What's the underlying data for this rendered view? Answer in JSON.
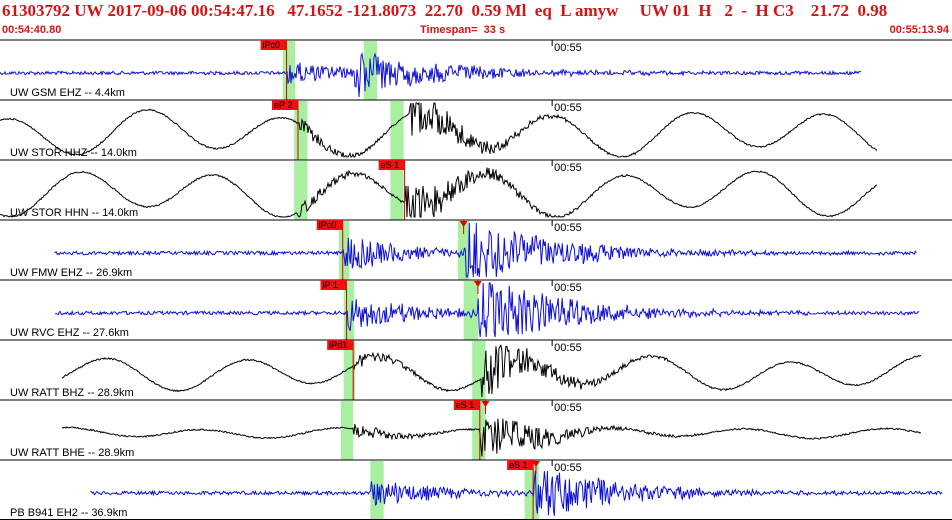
{
  "header": {
    "title_line": "61303792 UW 2017-09-06 00:54:47.16   47.1652 -121.8073  22.70  0.59 Ml  eq  L amyw     UW 01  H   2  -  H C3    21.72  0.98",
    "start_time": "00:54:40.80",
    "timespan": "Timespan=  33 s",
    "end_time": "00:55:13.94"
  },
  "colors": {
    "header_text": "#d41414",
    "short_period_trace": "#1010d8",
    "broadband_trace": "#000000",
    "pick_box": "#ee1111",
    "pick_window": "#a8f0a0"
  },
  "traces": [
    {
      "label": "UW GSM EHZ -- 4.4km",
      "time_mark": "00:55",
      "type": "short",
      "start": 0.0,
      "end": 0.905,
      "p_onset": 0.301,
      "s_onset": 0.37,
      "pick": "iPc0",
      "pick_pos": 0.301,
      "win": [
        0.297,
        0.31,
        0.382,
        0.396
      ],
      "theo": null,
      "amp": 0.1
    },
    {
      "label": "UW STOR HHZ -- 14.0km",
      "time_mark": "00:55",
      "type": "broad",
      "start": 0.0,
      "end": 0.922,
      "p_onset": 0.313,
      "s_onset": 0.43,
      "pick": "eP 2",
      "pick_pos": 0.313,
      "win": [
        0.309,
        0.323,
        0.41,
        0.424
      ],
      "theo": null,
      "amp": 0.35
    },
    {
      "label": "UW STOR HHN -- 14.0km",
      "time_mark": "00:55",
      "type": "broad",
      "start": 0.0,
      "end": 0.922,
      "p_onset": 0.313,
      "s_onset": 0.425,
      "pick": "eS 1",
      "pick_pos": 0.425,
      "win": [
        0.309,
        0.323,
        0.41,
        0.424
      ],
      "theo": null,
      "amp": 0.35
    },
    {
      "label": "UW FMW EHZ -- 26.9km",
      "time_mark": "00:55",
      "type": "short",
      "start": 0.057,
      "end": 0.963,
      "p_onset": 0.36,
      "s_onset": 0.487,
      "pick": "iPc0",
      "pick_pos": 0.36,
      "win": [
        0.356,
        0.367,
        0.481,
        0.493
      ],
      "theo": 0.487,
      "amp": 0.16
    },
    {
      "label": "UW RVC EHZ -- 27.6km",
      "time_mark": "00:55",
      "type": "short",
      "start": 0.058,
      "end": 0.966,
      "p_onset": 0.364,
      "s_onset": 0.502,
      "pick": "iP 1",
      "pick_pos": 0.364,
      "win": [
        0.361,
        0.372,
        0.487,
        0.502
      ],
      "theo": 0.502,
      "amp": 0.16
    },
    {
      "label": "UW RATT BHZ -- 28.9km",
      "time_mark": "00:55",
      "type": "broad",
      "start": 0.065,
      "end": 0.968,
      "p_onset": 0.371,
      "s_onset": 0.506,
      "pick": "iPd1",
      "pick_pos": 0.371,
      "win": [
        0.361,
        0.373,
        0.496,
        0.51
      ],
      "theo": null,
      "amp": 0.26
    },
    {
      "label": "UW RATT BHE -- 28.9km",
      "time_mark": "00:55",
      "type": "broad",
      "start": 0.065,
      "end": 0.968,
      "p_onset": 0.371,
      "s_onset": 0.504,
      "pick": "eS 1",
      "pick_pos": 0.504,
      "win": [
        0.358,
        0.371,
        0.496,
        0.51
      ],
      "theo": 0.51,
      "amp": 0.08
    },
    {
      "label": "PB B941 EH2 -- 36.9km",
      "time_mark": "00:55",
      "type": "short",
      "start": 0.095,
      "end": 0.99,
      "p_onset": 0.39,
      "s_onset": 0.56,
      "pick": "eS 1",
      "pick_pos": 0.56,
      "win": [
        0.389,
        0.403,
        0.551,
        0.566
      ],
      "theo": 0.563,
      "amp": 0.12
    }
  ]
}
